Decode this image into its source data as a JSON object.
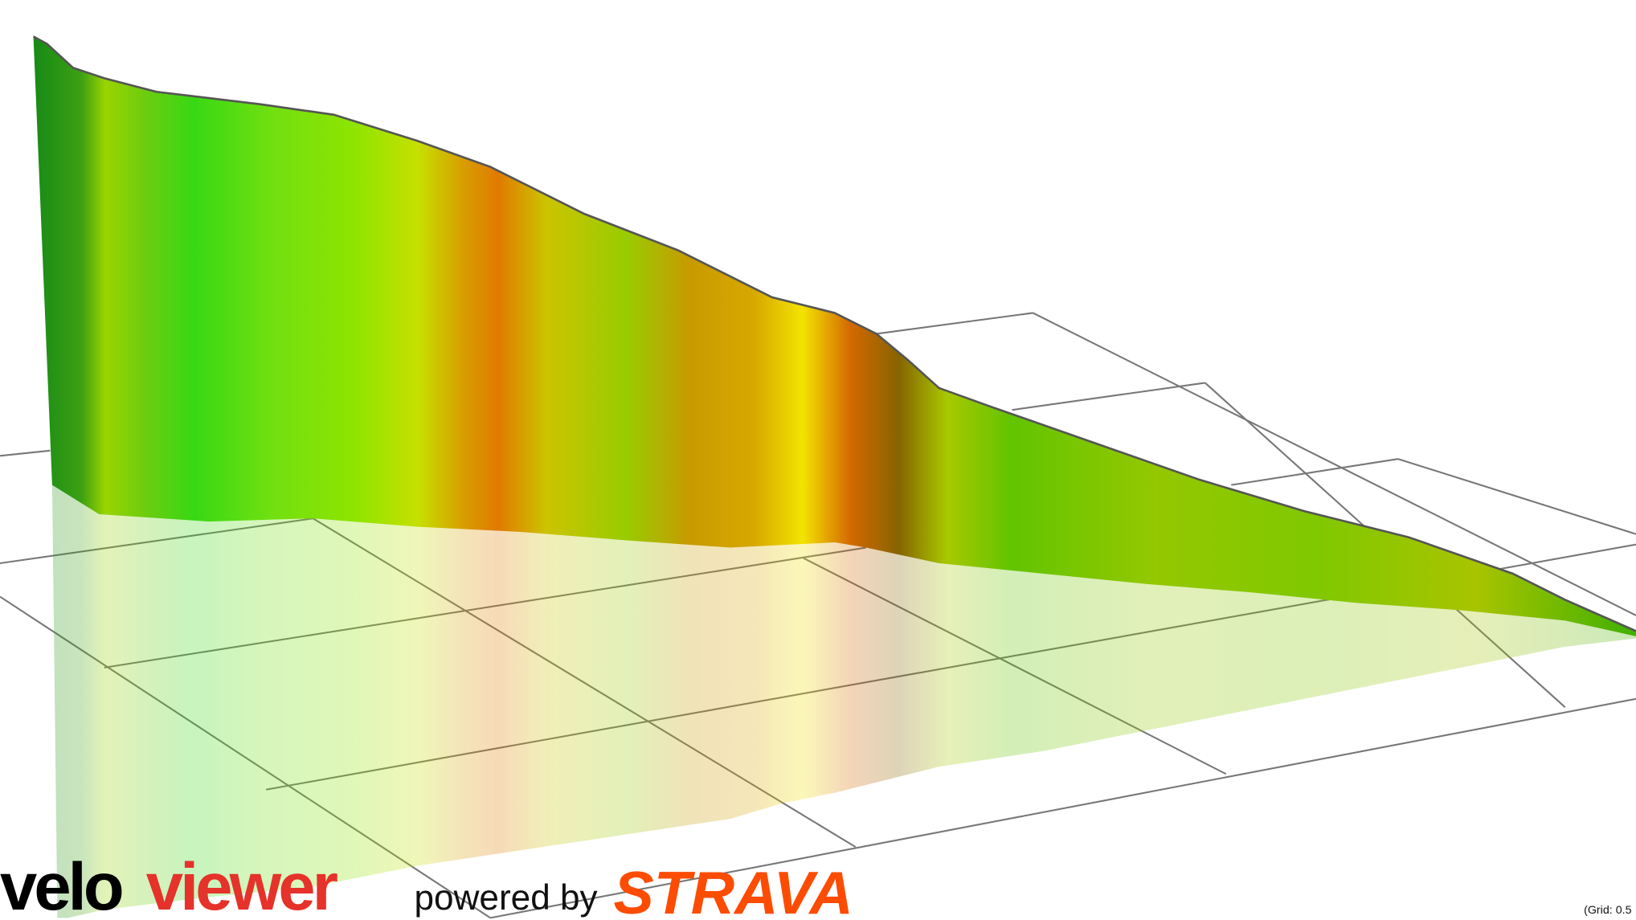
{
  "logo": {
    "velo": "velo",
    "viewer": "viewer"
  },
  "powered_by": "powered by",
  "strava": "STRAVA",
  "grid_note": "(Grid: 0.5"
}
